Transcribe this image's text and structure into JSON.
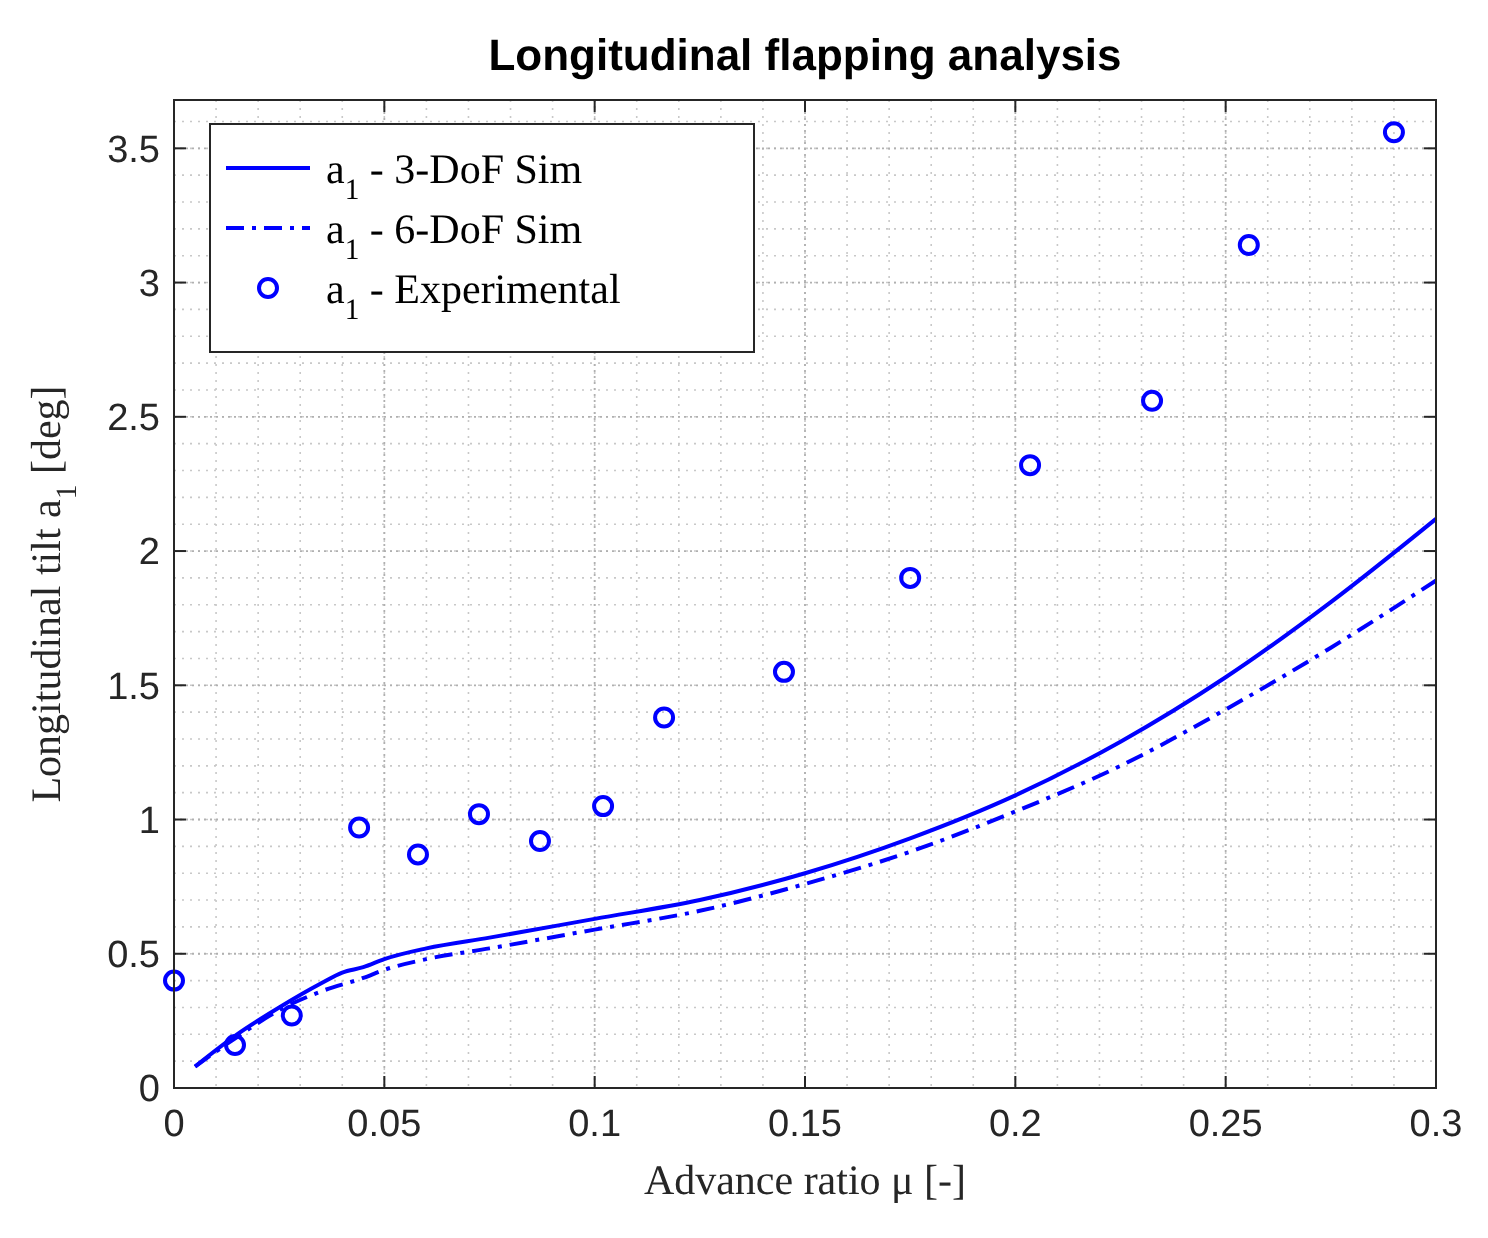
{
  "chart_data": {
    "type": "line",
    "title": "Longitudinal flapping analysis",
    "xlabel": "Advance ratio μ [-]",
    "ylabel": "Longitudinal tilt a$_{1}$ [deg]",
    "xlim": [
      0,
      0.3
    ],
    "xticks": [
      0,
      0.05,
      0.1,
      0.15,
      0.2,
      0.25,
      0.3
    ],
    "ylim": [
      0,
      3.68
    ],
    "yticks": [
      0,
      0.5,
      1,
      1.5,
      2,
      2.5,
      3,
      3.5
    ],
    "grid": true,
    "legend": "top left",
    "series": [
      {
        "name": "a$_{1}$ - 3-DoF Sim",
        "color": "#0000ff",
        "line_style": "solid",
        "x": [
          0.005,
          0.015,
          0.025,
          0.035,
          0.04,
          0.045,
          0.05,
          0.06,
          0.075,
          0.1,
          0.125,
          0.15,
          0.175,
          0.2,
          0.225,
          0.25,
          0.275,
          0.3
        ],
        "values": [
          0.08,
          0.2,
          0.3,
          0.39,
          0.43,
          0.45,
          0.48,
          0.52,
          0.56,
          0.63,
          0.7,
          0.8,
          0.93,
          1.09,
          1.29,
          1.53,
          1.81,
          2.12
        ]
      },
      {
        "name": "a$_{1}$ - 6-DoF Sim",
        "color": "#0000ff",
        "line_style": "dashdot",
        "x": [
          0.005,
          0.015,
          0.025,
          0.035,
          0.045,
          0.05,
          0.06,
          0.075,
          0.1,
          0.125,
          0.15,
          0.175,
          0.2,
          0.225,
          0.25,
          0.275,
          0.3
        ],
        "values": [
          0.08,
          0.19,
          0.29,
          0.36,
          0.41,
          0.44,
          0.48,
          0.52,
          0.59,
          0.66,
          0.76,
          0.88,
          1.03,
          1.2,
          1.41,
          1.64,
          1.89
        ]
      },
      {
        "name": "a$_{1}$ - Experimental",
        "type": "scatter",
        "color": "#0000ff",
        "marker": "circle",
        "x": [
          0,
          0.0145,
          0.028,
          0.044,
          0.058,
          0.0725,
          0.087,
          0.102,
          0.1165,
          0.145,
          0.175,
          0.2035,
          0.2325,
          0.2555,
          0.29
        ],
        "values": [
          0.4,
          0.16,
          0.27,
          0.97,
          0.87,
          1.02,
          0.92,
          1.05,
          1.38,
          1.55,
          1.9,
          2.32,
          2.56,
          3.14,
          3.56
        ]
      }
    ]
  }
}
